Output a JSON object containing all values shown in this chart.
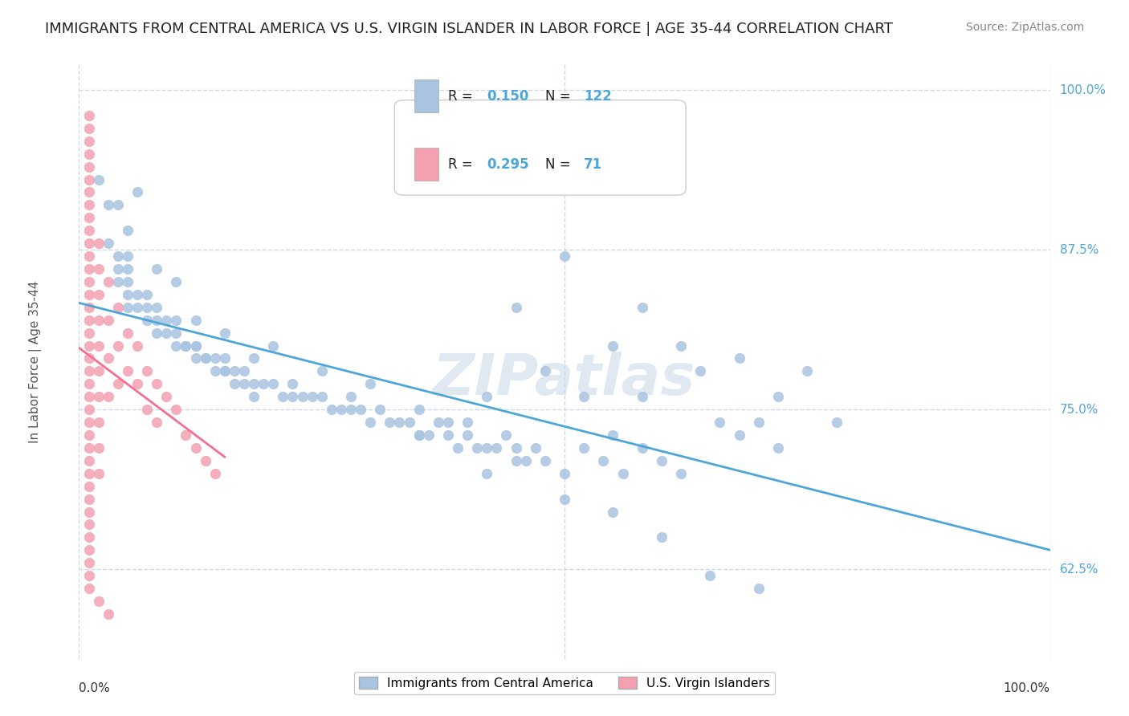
{
  "title": "IMMIGRANTS FROM CENTRAL AMERICA VS U.S. VIRGIN ISLANDER IN LABOR FORCE | AGE 35-44 CORRELATION CHART",
  "source": "Source: ZipAtlas.com",
  "xlabel": "",
  "ylabel": "In Labor Force | Age 35-44",
  "xlim": [
    0.0,
    1.0
  ],
  "ylim": [
    0.555,
    1.02
  ],
  "xtick_labels": [
    "0.0%",
    "100.0%"
  ],
  "ytick_labels": [
    "62.5%",
    "75.0%",
    "87.5%",
    "100.0%"
  ],
  "ytick_values": [
    0.625,
    0.75,
    0.875,
    1.0
  ],
  "R_blue": 0.15,
  "N_blue": 122,
  "R_pink": 0.295,
  "N_pink": 71,
  "blue_color": "#a8c4e0",
  "pink_color": "#f4a0b0",
  "trend_blue_color": "#4da6d8",
  "trend_pink_color": "#f47090",
  "legend_label_blue": "Immigrants from Central America",
  "legend_label_pink": "U.S. Virgin Islanders",
  "watermark": "ZIPatlas",
  "background_color": "#ffffff",
  "grid_color": "#d0d8e8",
  "blue_scatter_x": [
    0.02,
    0.03,
    0.03,
    0.04,
    0.04,
    0.04,
    0.05,
    0.05,
    0.05,
    0.05,
    0.06,
    0.06,
    0.07,
    0.07,
    0.08,
    0.08,
    0.09,
    0.09,
    0.1,
    0.1,
    0.11,
    0.11,
    0.12,
    0.12,
    0.13,
    0.13,
    0.14,
    0.14,
    0.15,
    0.15,
    0.16,
    0.16,
    0.17,
    0.17,
    0.18,
    0.18,
    0.19,
    0.2,
    0.21,
    0.22,
    0.23,
    0.24,
    0.25,
    0.26,
    0.27,
    0.28,
    0.29,
    0.3,
    0.31,
    0.32,
    0.33,
    0.34,
    0.35,
    0.36,
    0.37,
    0.38,
    0.39,
    0.4,
    0.41,
    0.42,
    0.43,
    0.44,
    0.45,
    0.46,
    0.47,
    0.48,
    0.5,
    0.52,
    0.54,
    0.56,
    0.58,
    0.6,
    0.62,
    0.64,
    0.66,
    0.68,
    0.7,
    0.72,
    0.75,
    0.78,
    0.05,
    0.07,
    0.1,
    0.12,
    0.15,
    0.2,
    0.25,
    0.3,
    0.35,
    0.4,
    0.45,
    0.5,
    0.55,
    0.6,
    0.65,
    0.7,
    0.45,
    0.38,
    0.48,
    0.52,
    0.55,
    0.58,
    0.42,
    0.35,
    0.28,
    0.22,
    0.18,
    0.15,
    0.12,
    0.08,
    0.05,
    0.04,
    0.06,
    0.08,
    0.1,
    0.5,
    0.58,
    0.62,
    0.68,
    0.72,
    0.55,
    0.42
  ],
  "blue_scatter_y": [
    0.93,
    0.91,
    0.88,
    0.87,
    0.86,
    0.85,
    0.86,
    0.85,
    0.84,
    0.83,
    0.84,
    0.83,
    0.83,
    0.82,
    0.82,
    0.81,
    0.82,
    0.81,
    0.81,
    0.8,
    0.8,
    0.8,
    0.8,
    0.79,
    0.79,
    0.79,
    0.79,
    0.78,
    0.78,
    0.78,
    0.78,
    0.77,
    0.78,
    0.77,
    0.77,
    0.76,
    0.77,
    0.77,
    0.76,
    0.76,
    0.76,
    0.76,
    0.76,
    0.75,
    0.75,
    0.75,
    0.75,
    0.74,
    0.75,
    0.74,
    0.74,
    0.74,
    0.73,
    0.73,
    0.74,
    0.73,
    0.72,
    0.73,
    0.72,
    0.72,
    0.72,
    0.73,
    0.72,
    0.71,
    0.72,
    0.71,
    0.7,
    0.72,
    0.71,
    0.7,
    0.72,
    0.71,
    0.7,
    0.78,
    0.74,
    0.73,
    0.74,
    0.72,
    0.78,
    0.74,
    0.89,
    0.84,
    0.82,
    0.8,
    0.81,
    0.8,
    0.78,
    0.77,
    0.73,
    0.74,
    0.71,
    0.68,
    0.67,
    0.65,
    0.62,
    0.61,
    0.83,
    0.74,
    0.78,
    0.76,
    0.8,
    0.76,
    0.76,
    0.75,
    0.76,
    0.77,
    0.79,
    0.79,
    0.82,
    0.83,
    0.87,
    0.91,
    0.92,
    0.86,
    0.85,
    0.87,
    0.83,
    0.8,
    0.79,
    0.76,
    0.73,
    0.7
  ],
  "pink_scatter_x": [
    0.01,
    0.01,
    0.01,
    0.01,
    0.01,
    0.01,
    0.01,
    0.01,
    0.01,
    0.01,
    0.01,
    0.01,
    0.01,
    0.01,
    0.01,
    0.01,
    0.01,
    0.01,
    0.01,
    0.01,
    0.01,
    0.01,
    0.01,
    0.01,
    0.01,
    0.01,
    0.01,
    0.01,
    0.01,
    0.01,
    0.02,
    0.02,
    0.02,
    0.02,
    0.02,
    0.02,
    0.02,
    0.02,
    0.02,
    0.02,
    0.03,
    0.03,
    0.03,
    0.03,
    0.04,
    0.04,
    0.04,
    0.05,
    0.05,
    0.06,
    0.06,
    0.07,
    0.07,
    0.08,
    0.08,
    0.09,
    0.1,
    0.11,
    0.12,
    0.13,
    0.14,
    0.01,
    0.01,
    0.01,
    0.01,
    0.01,
    0.01,
    0.01,
    0.01,
    0.02,
    0.03
  ],
  "pink_scatter_y": [
    0.98,
    0.97,
    0.96,
    0.95,
    0.94,
    0.93,
    0.92,
    0.91,
    0.9,
    0.89,
    0.88,
    0.87,
    0.86,
    0.85,
    0.84,
    0.83,
    0.82,
    0.81,
    0.8,
    0.79,
    0.78,
    0.77,
    0.76,
    0.75,
    0.74,
    0.73,
    0.72,
    0.71,
    0.7,
    0.69,
    0.88,
    0.86,
    0.84,
    0.82,
    0.8,
    0.78,
    0.76,
    0.74,
    0.72,
    0.7,
    0.85,
    0.82,
    0.79,
    0.76,
    0.83,
    0.8,
    0.77,
    0.81,
    0.78,
    0.8,
    0.77,
    0.78,
    0.75,
    0.77,
    0.74,
    0.76,
    0.75,
    0.73,
    0.72,
    0.71,
    0.7,
    0.68,
    0.67,
    0.66,
    0.65,
    0.64,
    0.63,
    0.62,
    0.61,
    0.6,
    0.59
  ]
}
